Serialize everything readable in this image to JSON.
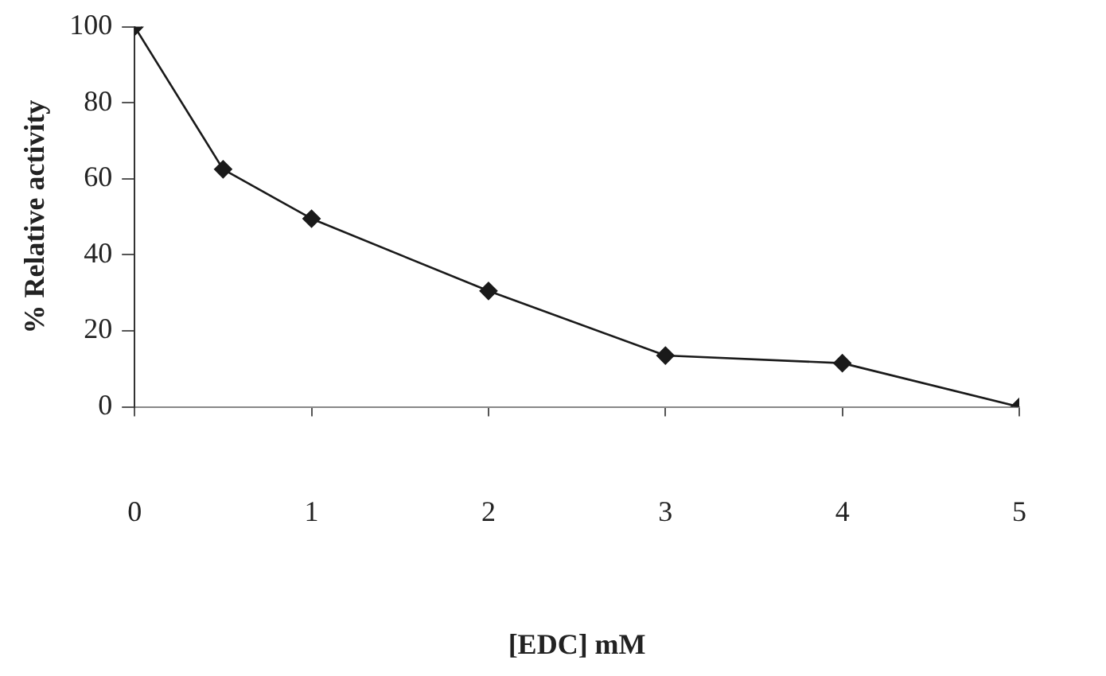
{
  "chart_data": {
    "type": "line",
    "xlabel": "[EDC] mM",
    "ylabel": "% Relative activity",
    "x": [
      0,
      0.5,
      1,
      2,
      3,
      4,
      5
    ],
    "series": [
      {
        "color": "#1a1a1a",
        "values": [
          100,
          62.5,
          49.5,
          30.5,
          13.5,
          11.5,
          0
        ]
      }
    ],
    "xlim": [
      0,
      5
    ],
    "xticks": [
      0,
      1,
      2,
      3,
      4,
      5
    ],
    "ylim": [
      0,
      100
    ],
    "yticks": [
      0,
      20,
      40,
      60,
      80,
      100
    ],
    "grid": false,
    "legend": false,
    "marker": "diamond",
    "line_style": "solid"
  }
}
